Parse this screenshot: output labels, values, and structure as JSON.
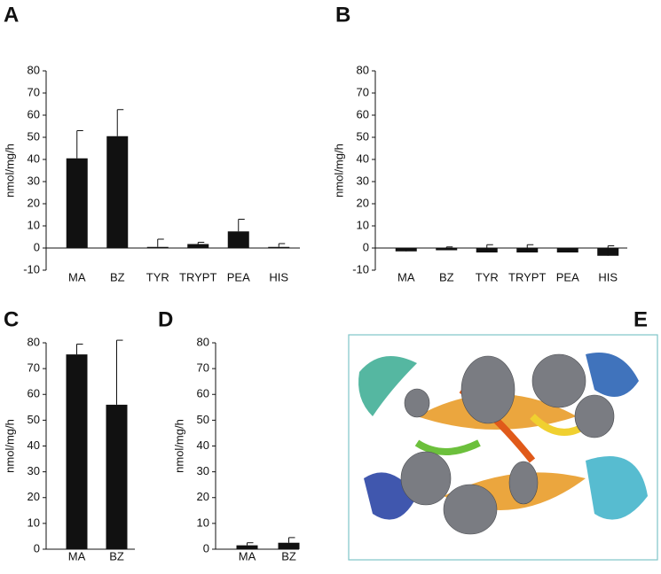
{
  "chart_data": [
    {
      "type": "bar",
      "label": "A",
      "ylabel": "nmol/mg/h",
      "color": "#111111",
      "categories": [
        "MA",
        "BZ",
        "TYR",
        "TRYPT",
        "PEA",
        "HIS"
      ],
      "values": [
        40.5,
        50.5,
        0.5,
        1.8,
        7.5,
        0.5
      ],
      "errors": [
        12.5,
        12,
        3.5,
        0.8,
        5.5,
        1.5
      ],
      "ylim": [
        -10,
        80
      ],
      "yticks": [
        -10,
        0,
        10,
        20,
        30,
        40,
        50,
        60,
        70,
        80
      ]
    },
    {
      "type": "bar",
      "label": "B",
      "ylabel": "nmol/mg/h",
      "color": "#111111",
      "categories": [
        "MA",
        "BZ",
        "TYR",
        "TRYPT",
        "PEA",
        "HIS"
      ],
      "values": [
        -1.5,
        -1,
        -2,
        -2,
        -2,
        -3.5
      ],
      "errors": [
        1.5,
        1.5,
        3.5,
        3.5,
        1.5,
        4.5
      ],
      "ylim": [
        -10,
        80
      ],
      "yticks": [
        -10,
        0,
        10,
        20,
        30,
        40,
        50,
        60,
        70,
        80
      ]
    },
    {
      "type": "bar",
      "label": "C",
      "ylabel": "nmol/mg/h",
      "color": "#111111",
      "categories": [
        "MA",
        "BZ"
      ],
      "values": [
        75.5,
        56
      ],
      "errors": [
        4,
        25
      ],
      "ylim": [
        0,
        80
      ],
      "yticks": [
        0,
        10,
        20,
        30,
        40,
        50,
        60,
        70,
        80
      ]
    },
    {
      "type": "bar",
      "label": "D",
      "ylabel": "nmol/mg/h",
      "color": "#111111",
      "categories": [
        "MA",
        "BZ"
      ],
      "values": [
        1.5,
        2.5
      ],
      "errors": [
        1,
        2
      ],
      "ylim": [
        0,
        80
      ],
      "yticks": [
        0,
        10,
        20,
        30,
        40,
        50,
        60,
        70,
        80
      ]
    }
  ],
  "structure_panel": {
    "label": "E"
  }
}
